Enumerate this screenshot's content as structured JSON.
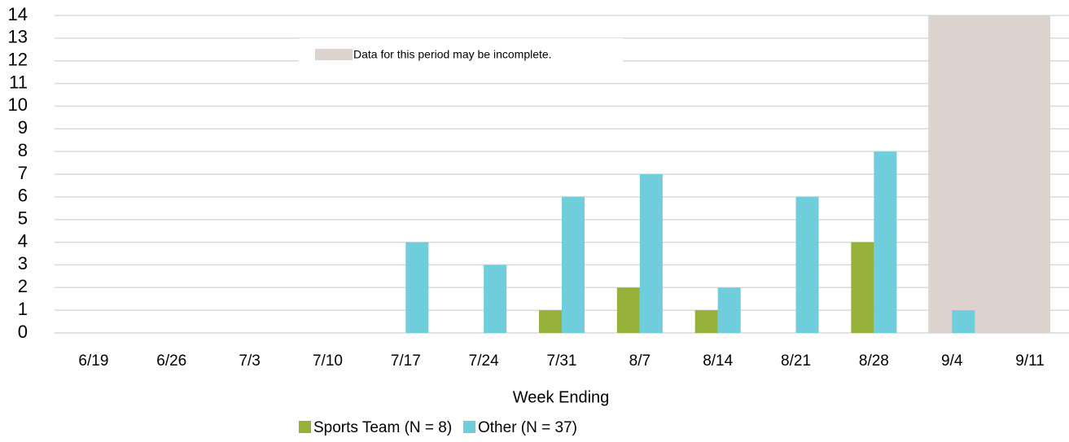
{
  "chart_data": {
    "type": "bar",
    "x_label": "Week Ending",
    "categories": [
      "6/19",
      "6/26",
      "7/3",
      "7/10",
      "7/17",
      "7/24",
      "7/31",
      "8/7",
      "8/14",
      "8/21",
      "8/28",
      "9/4",
      "9/11"
    ],
    "series": [
      {
        "name": "Sports Team (N = 8)",
        "color": "#95b13a",
        "values": [
          0,
          0,
          0,
          0,
          0,
          0,
          1,
          2,
          1,
          0,
          4,
          0,
          0
        ]
      },
      {
        "name": "Other (N = 37)",
        "color": "#6fcddc",
        "values": [
          0,
          0,
          0,
          0,
          4,
          3,
          6,
          7,
          2,
          6,
          8,
          1,
          0
        ]
      }
    ],
    "ylim": [
      0,
      14
    ],
    "yticks": [
      0,
      1,
      2,
      3,
      4,
      5,
      6,
      7,
      8,
      9,
      10,
      11,
      12,
      13,
      14
    ],
    "grid": true,
    "legend": "bottom",
    "annotation": {
      "text": "Data for this period may be incomplete.",
      "from": "9/4",
      "to": "9/11",
      "color": "#dcd3ce"
    }
  }
}
